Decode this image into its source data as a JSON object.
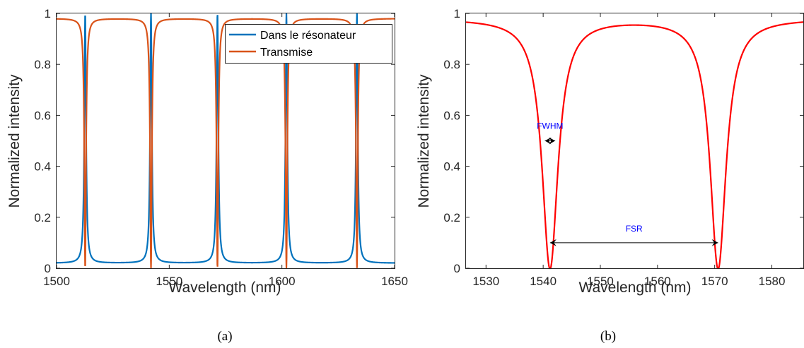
{
  "chart_data": [
    {
      "type": "line",
      "panel": "a",
      "caption": "(a)",
      "xlabel": "Wavelength (nm)",
      "ylabel": "Normalized intensity",
      "xlim": [
        1500,
        1650
      ],
      "ylim": [
        0,
        1
      ],
      "xticks": [
        "1500",
        "1550",
        "1600",
        "1650"
      ],
      "yticks": [
        "0",
        "0.2",
        "0.4",
        "0.6",
        "0.8",
        "1"
      ],
      "grid": false,
      "legend_position": "top-right",
      "resonances_nm": [
        1512.7,
        1541.9,
        1571.4,
        1602.0,
        1633.3
      ],
      "series": [
        {
          "name": "Dans le résonateur",
          "color": "#0072BD",
          "min": 0.02,
          "max": 1.0,
          "points": [
            [
              1500,
              0.02
            ],
            [
              1508,
              0.05
            ],
            [
              1512.0,
              0.5
            ],
            [
              1512.7,
              1.0
            ],
            [
              1513.4,
              0.5
            ],
            [
              1517,
              0.05
            ],
            [
              1527,
              0.02
            ],
            [
              1541.9,
              1.0
            ],
            [
              1556,
              0.02
            ],
            [
              1571.4,
              1.0
            ],
            [
              1587,
              0.02
            ],
            [
              1602.0,
              1.0
            ],
            [
              1618,
              0.02
            ],
            [
              1633.3,
              1.0
            ],
            [
              1650,
              0.02
            ]
          ]
        },
        {
          "name": "Transmise",
          "color": "#D95319",
          "min": 0.0,
          "max": 0.98,
          "points": [
            [
              1500,
              0.98
            ],
            [
              1508,
              0.95
            ],
            [
              1512.0,
              0.5
            ],
            [
              1512.7,
              0.0
            ],
            [
              1513.4,
              0.5
            ],
            [
              1517,
              0.95
            ],
            [
              1527,
              0.98
            ],
            [
              1541.9,
              0.0
            ],
            [
              1556,
              0.98
            ],
            [
              1571.4,
              0.0
            ],
            [
              1587,
              0.98
            ],
            [
              1602.0,
              0.0
            ],
            [
              1618,
              0.98
            ],
            [
              1633.3,
              0.0
            ],
            [
              1650,
              0.98
            ]
          ]
        }
      ]
    },
    {
      "type": "line",
      "panel": "b",
      "caption": "(b)",
      "xlabel": "Wavelength (nm)",
      "ylabel": "Normalized intensity",
      "xlim": [
        1526.5,
        1585.5
      ],
      "ylim": [
        0,
        1
      ],
      "xticks": [
        "1530",
        "1540",
        "1550",
        "1560",
        "1570",
        "1580"
      ],
      "yticks": [
        "0",
        "0.2",
        "0.4",
        "0.6",
        "0.8",
        "1"
      ],
      "grid": false,
      "resonances_nm": [
        1541.2,
        1570.6
      ],
      "series": [
        {
          "color": "#FF0000",
          "min": 0.0,
          "max": 0.98,
          "points": [
            [
              1526.5,
              0.98
            ],
            [
              1535,
              0.9
            ],
            [
              1539.5,
              0.5
            ],
            [
              1541.2,
              0.0
            ],
            [
              1542.9,
              0.5
            ],
            [
              1548,
              0.9
            ],
            [
              1556,
              0.98
            ],
            [
              1564,
              0.9
            ],
            [
              1568.9,
              0.5
            ],
            [
              1570.6,
              0.0
            ],
            [
              1572.3,
              0.5
            ],
            [
              1577,
              0.9
            ],
            [
              1585.5,
              0.98
            ]
          ]
        }
      ],
      "annotations": [
        {
          "text": "FWHM",
          "color": "#0000FF",
          "x_from": 1540.3,
          "x_to": 1542.1,
          "y": 0.5
        },
        {
          "text": "FSR",
          "color": "#0000FF",
          "x_from": 1541.2,
          "x_to": 1570.6,
          "y": 0.1
        }
      ]
    }
  ]
}
